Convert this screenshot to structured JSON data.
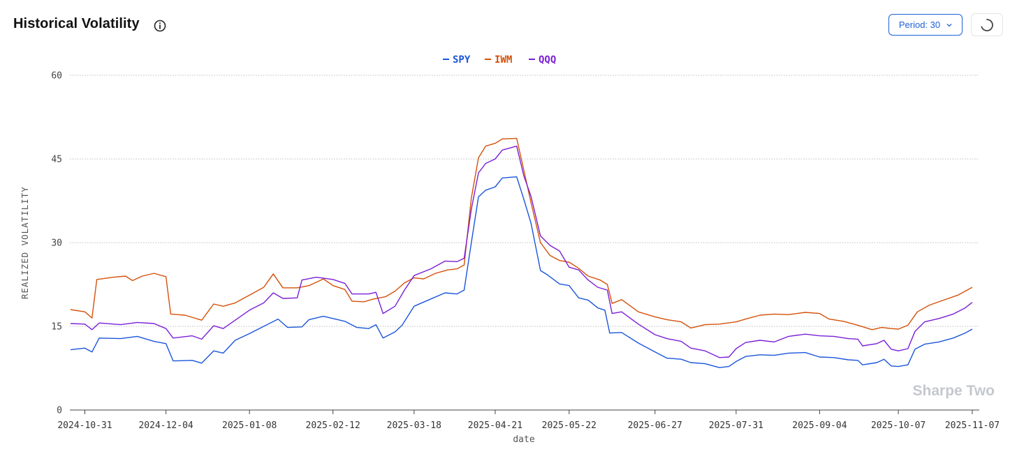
{
  "header": {
    "title": "Historical Volatility",
    "period_label": "Period: 30",
    "info_icon": "info-circle-icon",
    "refresh_icon": "spinner-icon"
  },
  "watermark": "Sharpe Two",
  "chart_data": {
    "type": "line",
    "title": "Historical Volatility",
    "xlabel": "date",
    "ylabel": "REALIZED VOLATILITY",
    "ylim": [
      0,
      60
    ],
    "yticks": [
      0,
      15,
      30,
      45,
      60
    ],
    "xlim": [
      "2024-10-25",
      "2025-11-07"
    ],
    "xticks": [
      "2024-10-31",
      "2024-12-04",
      "2025-01-08",
      "2025-02-12",
      "2025-03-18",
      "2025-04-21",
      "2025-05-22",
      "2025-06-27",
      "2025-07-31",
      "2025-09-04",
      "2025-10-07",
      "2025-11-07"
    ],
    "grid": true,
    "legend_position": "top-center",
    "series": [
      {
        "name": "SPY",
        "color": "#1a56db",
        "points": [
          [
            "2024-10-25",
            10.8
          ],
          [
            "2024-10-31",
            11.1
          ],
          [
            "2024-11-03",
            10.4
          ],
          [
            "2024-11-06",
            12.9
          ],
          [
            "2024-11-15",
            12.8
          ],
          [
            "2024-11-22",
            13.2
          ],
          [
            "2024-11-29",
            12.3
          ],
          [
            "2024-12-04",
            11.9
          ],
          [
            "2024-12-07",
            8.8
          ],
          [
            "2024-12-15",
            8.9
          ],
          [
            "2024-12-19",
            8.4
          ],
          [
            "2024-12-24",
            10.6
          ],
          [
            "2024-12-28",
            10.2
          ],
          [
            "2025-01-02",
            12.5
          ],
          [
            "2025-01-08",
            13.7
          ],
          [
            "2025-01-14",
            15.0
          ],
          [
            "2025-01-20",
            16.3
          ],
          [
            "2025-01-24",
            14.8
          ],
          [
            "2025-01-30",
            14.9
          ],
          [
            "2025-02-02",
            16.2
          ],
          [
            "2025-02-08",
            16.8
          ],
          [
            "2025-02-12",
            16.4
          ],
          [
            "2025-02-17",
            15.9
          ],
          [
            "2025-02-22",
            14.8
          ],
          [
            "2025-02-27",
            14.6
          ],
          [
            "2025-03-02",
            15.3
          ],
          [
            "2025-03-05",
            12.9
          ],
          [
            "2025-03-10",
            14.0
          ],
          [
            "2025-03-13",
            15.2
          ],
          [
            "2025-03-18",
            18.6
          ],
          [
            "2025-03-25",
            19.9
          ],
          [
            "2025-03-31",
            21.0
          ],
          [
            "2025-04-05",
            20.8
          ],
          [
            "2025-04-08",
            21.5
          ],
          [
            "2025-04-11",
            30.0
          ],
          [
            "2025-04-14",
            38.2
          ],
          [
            "2025-04-17",
            39.4
          ],
          [
            "2025-04-21",
            40.0
          ],
          [
            "2025-04-24",
            41.6
          ],
          [
            "2025-04-30",
            41.8
          ],
          [
            "2025-05-03",
            37.8
          ],
          [
            "2025-05-06",
            33.5
          ],
          [
            "2025-05-10",
            25.0
          ],
          [
            "2025-05-13",
            24.2
          ],
          [
            "2025-05-18",
            22.6
          ],
          [
            "2025-05-22",
            22.3
          ],
          [
            "2025-05-26",
            20.1
          ],
          [
            "2025-05-30",
            19.7
          ],
          [
            "2025-06-03",
            18.3
          ],
          [
            "2025-06-06",
            17.9
          ],
          [
            "2025-06-08",
            13.8
          ],
          [
            "2025-06-13",
            13.9
          ],
          [
            "2025-06-20",
            12.0
          ],
          [
            "2025-06-27",
            10.4
          ],
          [
            "2025-07-02",
            9.3
          ],
          [
            "2025-07-08",
            9.1
          ],
          [
            "2025-07-12",
            8.5
          ],
          [
            "2025-07-18",
            8.3
          ],
          [
            "2025-07-24",
            7.6
          ],
          [
            "2025-07-28",
            7.8
          ],
          [
            "2025-07-31",
            8.7
          ],
          [
            "2025-08-04",
            9.6
          ],
          [
            "2025-08-10",
            9.9
          ],
          [
            "2025-08-16",
            9.8
          ],
          [
            "2025-08-22",
            10.2
          ],
          [
            "2025-08-29",
            10.3
          ],
          [
            "2025-09-04",
            9.5
          ],
          [
            "2025-09-10",
            9.4
          ],
          [
            "2025-09-16",
            9.0
          ],
          [
            "2025-09-20",
            8.9
          ],
          [
            "2025-09-22",
            8.1
          ],
          [
            "2025-09-28",
            8.5
          ],
          [
            "2025-10-01",
            9.1
          ],
          [
            "2025-10-04",
            7.9
          ],
          [
            "2025-10-07",
            7.8
          ],
          [
            "2025-10-11",
            8.1
          ],
          [
            "2025-10-14",
            10.9
          ],
          [
            "2025-10-18",
            11.8
          ],
          [
            "2025-10-24",
            12.2
          ],
          [
            "2025-10-30",
            12.9
          ],
          [
            "2025-11-04",
            13.8
          ],
          [
            "2025-11-07",
            14.5
          ]
        ]
      },
      {
        "name": "IWM",
        "color": "#d4510a",
        "points": [
          [
            "2024-10-25",
            18.0
          ],
          [
            "2024-10-31",
            17.6
          ],
          [
            "2024-11-03",
            16.5
          ],
          [
            "2024-11-05",
            23.4
          ],
          [
            "2024-11-12",
            23.8
          ],
          [
            "2024-11-17",
            24.0
          ],
          [
            "2024-11-20",
            23.2
          ],
          [
            "2024-11-24",
            24.0
          ],
          [
            "2024-11-29",
            24.5
          ],
          [
            "2024-12-04",
            23.9
          ],
          [
            "2024-12-06",
            17.2
          ],
          [
            "2024-12-12",
            17.0
          ],
          [
            "2024-12-19",
            16.1
          ],
          [
            "2024-12-24",
            19.0
          ],
          [
            "2024-12-28",
            18.6
          ],
          [
            "2025-01-02",
            19.2
          ],
          [
            "2025-01-08",
            20.6
          ],
          [
            "2025-01-14",
            22.0
          ],
          [
            "2025-01-18",
            24.4
          ],
          [
            "2025-01-22",
            21.9
          ],
          [
            "2025-01-28",
            21.9
          ],
          [
            "2025-02-02",
            22.3
          ],
          [
            "2025-02-08",
            23.5
          ],
          [
            "2025-02-12",
            22.3
          ],
          [
            "2025-02-17",
            21.6
          ],
          [
            "2025-02-20",
            19.5
          ],
          [
            "2025-02-25",
            19.4
          ],
          [
            "2025-03-01",
            19.9
          ],
          [
            "2025-03-06",
            20.3
          ],
          [
            "2025-03-10",
            21.3
          ],
          [
            "2025-03-14",
            22.8
          ],
          [
            "2025-03-18",
            23.7
          ],
          [
            "2025-03-22",
            23.5
          ],
          [
            "2025-03-27",
            24.5
          ],
          [
            "2025-04-01",
            25.1
          ],
          [
            "2025-04-05",
            25.3
          ],
          [
            "2025-04-08",
            26.0
          ],
          [
            "2025-04-11",
            38.0
          ],
          [
            "2025-04-14",
            45.2
          ],
          [
            "2025-04-17",
            47.3
          ],
          [
            "2025-04-21",
            47.8
          ],
          [
            "2025-04-24",
            48.6
          ],
          [
            "2025-04-30",
            48.7
          ],
          [
            "2025-05-03",
            43.0
          ],
          [
            "2025-05-06",
            37.2
          ],
          [
            "2025-05-10",
            30.0
          ],
          [
            "2025-05-14",
            27.7
          ],
          [
            "2025-05-18",
            26.8
          ],
          [
            "2025-05-22",
            26.5
          ],
          [
            "2025-05-26",
            25.4
          ],
          [
            "2025-05-30",
            24.0
          ],
          [
            "2025-06-04",
            23.3
          ],
          [
            "2025-06-07",
            22.5
          ],
          [
            "2025-06-09",
            19.1
          ],
          [
            "2025-06-13",
            19.8
          ],
          [
            "2025-06-20",
            17.6
          ],
          [
            "2025-06-27",
            16.7
          ],
          [
            "2025-07-02",
            16.2
          ],
          [
            "2025-07-08",
            15.8
          ],
          [
            "2025-07-12",
            14.7
          ],
          [
            "2025-07-18",
            15.3
          ],
          [
            "2025-07-24",
            15.4
          ],
          [
            "2025-07-31",
            15.8
          ],
          [
            "2025-08-04",
            16.3
          ],
          [
            "2025-08-10",
            17.0
          ],
          [
            "2025-08-16",
            17.2
          ],
          [
            "2025-08-22",
            17.1
          ],
          [
            "2025-08-29",
            17.5
          ],
          [
            "2025-09-04",
            17.3
          ],
          [
            "2025-09-08",
            16.3
          ],
          [
            "2025-09-14",
            15.9
          ],
          [
            "2025-09-20",
            15.2
          ],
          [
            "2025-09-26",
            14.4
          ],
          [
            "2025-09-30",
            14.8
          ],
          [
            "2025-10-04",
            14.6
          ],
          [
            "2025-10-07",
            14.5
          ],
          [
            "2025-10-11",
            15.2
          ],
          [
            "2025-10-15",
            17.6
          ],
          [
            "2025-10-20",
            18.8
          ],
          [
            "2025-10-26",
            19.7
          ],
          [
            "2025-11-01",
            20.6
          ],
          [
            "2025-11-07",
            22.0
          ]
        ]
      },
      {
        "name": "QQQ",
        "color": "#7a1fd6",
        "points": [
          [
            "2024-10-25",
            15.5
          ],
          [
            "2024-10-31",
            15.4
          ],
          [
            "2024-11-03",
            14.4
          ],
          [
            "2024-11-06",
            15.6
          ],
          [
            "2024-11-15",
            15.3
          ],
          [
            "2024-11-22",
            15.7
          ],
          [
            "2024-11-29",
            15.5
          ],
          [
            "2024-12-04",
            14.6
          ],
          [
            "2024-12-07",
            12.9
          ],
          [
            "2024-12-15",
            13.3
          ],
          [
            "2024-12-19",
            12.7
          ],
          [
            "2024-12-24",
            15.1
          ],
          [
            "2024-12-28",
            14.6
          ],
          [
            "2025-01-02",
            16.1
          ],
          [
            "2025-01-08",
            17.9
          ],
          [
            "2025-01-14",
            19.2
          ],
          [
            "2025-01-18",
            21.0
          ],
          [
            "2025-01-22",
            20.0
          ],
          [
            "2025-01-28",
            20.1
          ],
          [
            "2025-01-30",
            23.3
          ],
          [
            "2025-02-05",
            23.8
          ],
          [
            "2025-02-12",
            23.4
          ],
          [
            "2025-02-17",
            22.7
          ],
          [
            "2025-02-20",
            20.8
          ],
          [
            "2025-02-27",
            20.8
          ],
          [
            "2025-03-02",
            21.1
          ],
          [
            "2025-03-05",
            17.3
          ],
          [
            "2025-03-10",
            18.6
          ],
          [
            "2025-03-14",
            21.5
          ],
          [
            "2025-03-18",
            24.1
          ],
          [
            "2025-03-25",
            25.3
          ],
          [
            "2025-03-31",
            26.7
          ],
          [
            "2025-04-05",
            26.6
          ],
          [
            "2025-04-08",
            27.2
          ],
          [
            "2025-04-11",
            36.0
          ],
          [
            "2025-04-14",
            42.5
          ],
          [
            "2025-04-17",
            44.2
          ],
          [
            "2025-04-21",
            45.0
          ],
          [
            "2025-04-24",
            46.6
          ],
          [
            "2025-04-30",
            47.3
          ],
          [
            "2025-05-03",
            42.0
          ],
          [
            "2025-05-06",
            38.3
          ],
          [
            "2025-05-10",
            31.2
          ],
          [
            "2025-05-14",
            29.5
          ],
          [
            "2025-05-18",
            28.5
          ],
          [
            "2025-05-22",
            25.6
          ],
          [
            "2025-05-26",
            25.1
          ],
          [
            "2025-05-30",
            23.3
          ],
          [
            "2025-06-03",
            22.0
          ],
          [
            "2025-06-07",
            21.5
          ],
          [
            "2025-06-09",
            17.3
          ],
          [
            "2025-06-13",
            17.6
          ],
          [
            "2025-06-20",
            15.4
          ],
          [
            "2025-06-27",
            13.5
          ],
          [
            "2025-07-02",
            12.8
          ],
          [
            "2025-07-08",
            12.3
          ],
          [
            "2025-07-12",
            11.1
          ],
          [
            "2025-07-18",
            10.6
          ],
          [
            "2025-07-24",
            9.4
          ],
          [
            "2025-07-28",
            9.5
          ],
          [
            "2025-07-31",
            11.0
          ],
          [
            "2025-08-04",
            12.1
          ],
          [
            "2025-08-10",
            12.5
          ],
          [
            "2025-08-16",
            12.2
          ],
          [
            "2025-08-22",
            13.2
          ],
          [
            "2025-08-29",
            13.6
          ],
          [
            "2025-09-04",
            13.3
          ],
          [
            "2025-09-10",
            13.2
          ],
          [
            "2025-09-16",
            12.8
          ],
          [
            "2025-09-20",
            12.7
          ],
          [
            "2025-09-22",
            11.5
          ],
          [
            "2025-09-28",
            11.9
          ],
          [
            "2025-10-01",
            12.5
          ],
          [
            "2025-10-04",
            10.9
          ],
          [
            "2025-10-07",
            10.6
          ],
          [
            "2025-10-11",
            11.0
          ],
          [
            "2025-10-14",
            14.1
          ],
          [
            "2025-10-18",
            15.8
          ],
          [
            "2025-10-24",
            16.4
          ],
          [
            "2025-10-30",
            17.2
          ],
          [
            "2025-11-04",
            18.3
          ],
          [
            "2025-11-07",
            19.3
          ]
        ]
      }
    ]
  }
}
